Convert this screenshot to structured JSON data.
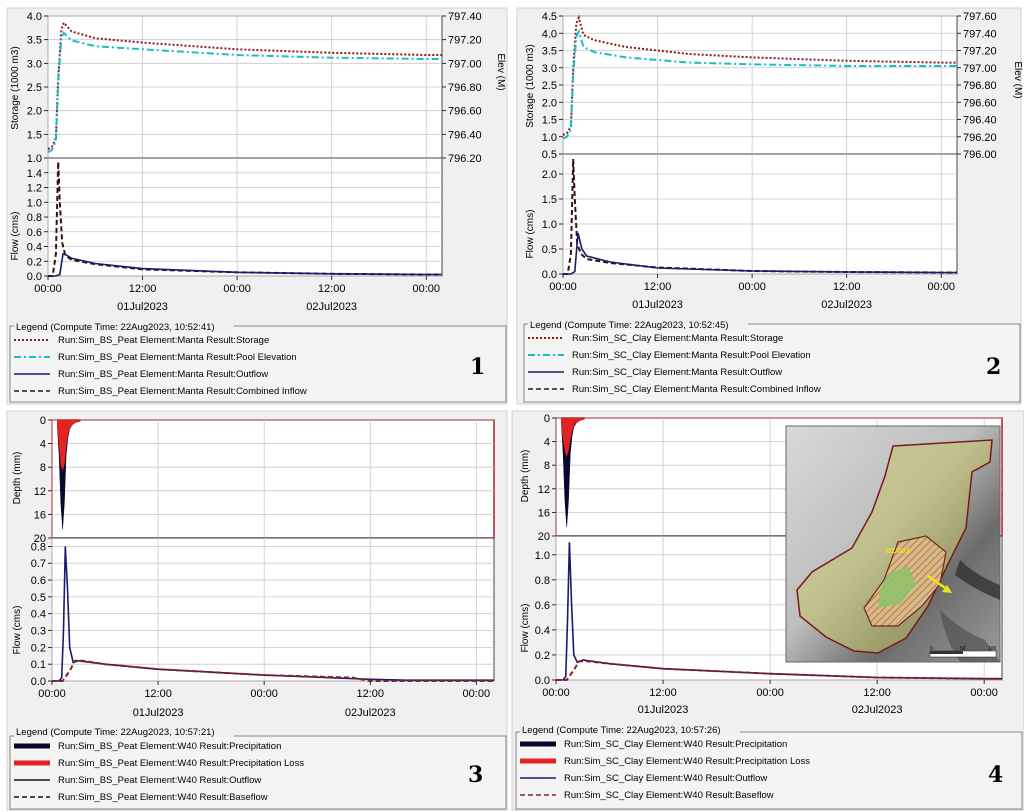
{
  "colors": {
    "storage": "#8b1a1a",
    "pool": "#17bec8",
    "outflow": "#1a1a6e",
    "inflow": "#3a1010",
    "precip": "#08082e",
    "ploss": "#e32222",
    "grid": "#c8c8c8",
    "frame": "#444444",
    "red_frame": "#b01a2a"
  },
  "x_ticks": [
    "00:00",
    "12:00",
    "00:00",
    "12:00",
    "00:00"
  ],
  "x_dates": [
    "01Jul2023",
    "02Jul2023"
  ],
  "panels": [
    {
      "number": "1",
      "storage_label": "Storage (1000 m3)",
      "elev_label": "Elev (M)",
      "flow_label": "Flow (cms)",
      "storage_ticks": [
        "4.0",
        "3.5",
        "3.0",
        "2.5",
        "2.0",
        "1.5",
        "1.0"
      ],
      "elev_ticks": [
        "797.40",
        "797.20",
        "797.00",
        "796.80",
        "796.60",
        "796.40",
        "796.20"
      ],
      "flow_ticks": [
        "1.4",
        "1.2",
        "1.0",
        "0.8",
        "0.6",
        "0.4",
        "0.2",
        "0.0"
      ],
      "legend_title": "Legend (Compute Time: 22Aug2023, 10:52:41)",
      "legend": [
        "Run:Sim_BS_Peat Element:Manta Result:Storage",
        "Run:Sim_BS_Peat Element:Manta Result:Pool Elevation",
        "Run:Sim_BS_Peat Element:Manta Result:Outflow",
        "Run:Sim_BS_Peat Element:Manta Result:Combined Inflow"
      ]
    },
    {
      "number": "2",
      "storage_label": "Storage (1000 m3)",
      "elev_label": "Elev (M)",
      "flow_label": "Flow (cms)",
      "storage_ticks": [
        "4.5",
        "4.0",
        "3.5",
        "3.0",
        "2.5",
        "2.0",
        "1.5",
        "1.0",
        "0.5"
      ],
      "elev_ticks": [
        "797.60",
        "797.40",
        "797.20",
        "797.00",
        "796.80",
        "796.60",
        "796.40",
        "796.20",
        "796.00"
      ],
      "flow_ticks": [
        "2.0",
        "1.5",
        "1.0",
        "0.5",
        "0.0"
      ],
      "legend_title": "Legend (Compute Time: 22Aug2023, 10:52:45)",
      "legend": [
        "Run:Sim_SC_Clay Element:Manta Result:Storage",
        "Run:Sim_SC_Clay Element:Manta Result:Pool Elevation",
        "Run:Sim_SC_Clay Element:Manta Result:Outflow",
        "Run:Sim_SC_Clay Element:Manta Result:Combined Inflow"
      ]
    },
    {
      "number": "3",
      "depth_label": "Depth (mm)",
      "flow_label": "Flow (cms)",
      "depth_ticks": [
        "0",
        "4",
        "8",
        "12",
        "16",
        "20"
      ],
      "flow_ticks": [
        "0.8",
        "0.7",
        "0.6",
        "0.5",
        "0.4",
        "0.3",
        "0.2",
        "0.1",
        "0.0"
      ],
      "legend_title": "Legend (Compute Time: 22Aug2023, 10:57:21)",
      "legend": [
        "Run:Sim_BS_Peat Element:W40 Result:Precipitation",
        "Run:Sim_BS_Peat Element:W40 Result:Precipitation Loss",
        "Run:Sim_BS_Peat Element:W40 Result:Outflow",
        "Run:Sim_BS_Peat Element:W40 Result:Baseflow"
      ]
    },
    {
      "number": "4",
      "depth_label": "Depth (mm)",
      "flow_label": "Flow (cms)",
      "depth_ticks": [
        "0",
        "4",
        "8",
        "12",
        "16",
        "20"
      ],
      "flow_ticks": [
        "1.0",
        "0.8",
        "0.6",
        "0.4",
        "0.2",
        "0.0"
      ],
      "map_label": "BZ-003",
      "scale_labels": [
        "0",
        "50",
        "100"
      ],
      "legend_title": "Legend (Compute Time: 22Aug2023, 10:57:26)",
      "legend": [
        "Run:Sim_SC_Clay Element:W40 Result:Precipitation",
        "Run:Sim_SC_Clay Element:W40 Result:Precipitation Loss",
        "Run:Sim_SC_Clay Element:W40 Result:Outflow",
        "Run:Sim_SC_Clay Element:W40 Result:Baseflow"
      ]
    }
  ],
  "chart_data": [
    {
      "type": "line",
      "x_unit": "hours since 01Jul2023 00:00",
      "xlim": [
        0,
        50
      ],
      "top": {
        "ylabel": "Storage (1000 m3)",
        "ylim": [
          0.8,
          4.0
        ],
        "y2label": "Elev (M)",
        "y2lim": [
          796.0,
          797.4
        ],
        "series": [
          {
            "name": "Run:Sim_BS_Peat Element:Manta Result:Storage",
            "x": [
              0,
              0.5,
              1.0,
              1.3,
              1.7,
              2.0,
              3,
              6,
              12,
              24,
              36,
              48,
              50
            ],
            "y": [
              1.0,
              1.05,
              1.25,
              2.6,
              3.7,
              3.85,
              3.65,
              3.5,
              3.4,
              3.25,
              3.17,
              3.12,
              3.12
            ]
          },
          {
            "name": "Run:Sim_BS_Peat Element:Manta Result:Pool Elevation",
            "x": [
              0,
              0.5,
              1.0,
              1.3,
              1.7,
              2.0,
              3,
              6,
              12,
              24,
              36,
              48,
              50
            ],
            "y": [
              0.93,
              0.98,
              1.18,
              2.5,
              3.5,
              3.62,
              3.45,
              3.32,
              3.25,
              3.12,
              3.06,
              3.03,
              3.03
            ]
          }
        ]
      },
      "bottom": {
        "ylabel": "Flow (cms)",
        "ylim": [
          0,
          1.6
        ],
        "series": [
          {
            "name": "Run:Sim_BS_Peat Element:Manta Result:Combined Inflow",
            "x": [
              0,
              0.6,
              1.0,
              1.3,
              1.5,
              1.8,
              2.2,
              3,
              6,
              12,
              24,
              36,
              48,
              50
            ],
            "y": [
              0,
              0.0,
              0.3,
              1.55,
              1.0,
              0.45,
              0.28,
              0.22,
              0.16,
              0.09,
              0.05,
              0.03,
              0.02,
              0.02
            ]
          },
          {
            "name": "Run:Sim_BS_Peat Element:Manta Result:Outflow",
            "x": [
              0,
              1.0,
              1.5,
              1.9,
              2.4,
              3,
              6,
              12,
              24,
              36,
              48,
              50
            ],
            "y": [
              0,
              0,
              0.02,
              0.3,
              0.28,
              0.24,
              0.17,
              0.1,
              0.05,
              0.03,
              0.02,
              0.02
            ]
          }
        ]
      }
    },
    {
      "type": "line",
      "x_unit": "hours since 01Jul2023 00:00",
      "xlim": [
        0,
        50
      ],
      "top": {
        "ylabel": "Storage (1000 m3)",
        "ylim": [
          0.5,
          4.5
        ],
        "y2label": "Elev (M)",
        "y2lim": [
          796.0,
          797.6
        ],
        "series": [
          {
            "name": "Run:Sim_SC_Clay Element:Manta Result:Storage",
            "x": [
              0,
              0.5,
              1.0,
              1.3,
              1.7,
              2.0,
              2.6,
              4,
              8,
              16,
              24,
              36,
              48,
              50
            ],
            "y": [
              1.05,
              1.1,
              1.3,
              3.0,
              4.3,
              4.45,
              3.95,
              3.8,
              3.6,
              3.4,
              3.3,
              3.2,
              3.15,
              3.15
            ]
          },
          {
            "name": "Run:Sim_SC_Clay Element:Manta Result:Pool Elevation",
            "x": [
              0,
              0.5,
              1.0,
              1.3,
              1.7,
              2.0,
              2.6,
              4,
              8,
              16,
              24,
              36,
              48,
              50
            ],
            "y": [
              0.95,
              1.0,
              1.2,
              2.8,
              3.9,
              4.05,
              3.6,
              3.45,
              3.3,
              3.15,
              3.1,
              3.05,
              3.05,
              3.05
            ]
          }
        ]
      },
      "bottom": {
        "ylabel": "Flow (cms)",
        "ylim": [
          0,
          2.4
        ],
        "series": [
          {
            "name": "Run:Sim_SC_Clay Element:Manta Result:Combined Inflow",
            "x": [
              0,
              0.6,
              1.0,
              1.3,
              1.5,
              1.8,
              2.3,
              3,
              6,
              12,
              24,
              36,
              48,
              50
            ],
            "y": [
              0,
              0,
              0.4,
              2.3,
              1.5,
              0.6,
              0.4,
              0.3,
              0.22,
              0.13,
              0.06,
              0.04,
              0.03,
              0.03
            ]
          },
          {
            "name": "Run:Sim_SC_Clay Element:Manta Result:Outflow",
            "x": [
              0,
              1.0,
              1.5,
              1.9,
              2.4,
              3,
              6,
              12,
              24,
              36,
              48,
              50
            ],
            "y": [
              0,
              0,
              0.05,
              0.82,
              0.5,
              0.36,
              0.24,
              0.12,
              0.06,
              0.04,
              0.03,
              0.03
            ]
          }
        ]
      }
    },
    {
      "type": "line",
      "x_unit": "hours since 01Jul2023 00:00",
      "xlim": [
        0,
        50
      ],
      "top": {
        "ylabel": "Depth (mm)",
        "ylim": [
          0,
          20
        ],
        "inverted": true,
        "series": [
          {
            "name": "Run:Sim_BS_Peat Element:W40 Result:Precipitation",
            "x": [
              0.6,
              0.8,
              1.0,
              1.2,
              1.4,
              1.6,
              1.8,
              2.0,
              2.3,
              2.7,
              3.2
            ],
            "y": [
              1.0,
              6.0,
              14.0,
              18.5,
              14.0,
              6.0,
              3.0,
              1.5,
              0.8,
              0.4,
              0.2
            ]
          },
          {
            "name": "Run:Sim_BS_Peat Element:W40 Result:Precipitation Loss",
            "x": [
              0.6,
              0.8,
              1.0,
              1.2,
              1.4,
              1.6,
              1.8,
              2.0,
              2.3,
              2.7,
              3.2
            ],
            "y": [
              1.0,
              4.0,
              7.5,
              8.5,
              7.5,
              4.5,
              2.5,
              1.3,
              0.8,
              0.4,
              0.2
            ]
          }
        ]
      },
      "bottom": {
        "ylabel": "Flow (cms)",
        "ylim": [
          0,
          0.85
        ],
        "series": [
          {
            "name": "Run:Sim_BS_Peat Element:W40 Result:Outflow",
            "x": [
              0,
              0.8,
              1.1,
              1.3,
              1.5,
              1.75,
              2.0,
              2.4,
              3,
              6,
              12,
              24,
              36,
              40,
              50
            ],
            "y": [
              0,
              0,
              0.02,
              0.3,
              0.8,
              0.55,
              0.2,
              0.11,
              0.12,
              0.1,
              0.07,
              0.035,
              0.01,
              0.005,
              0.005
            ]
          },
          {
            "name": "Run:Sim_BS_Peat Element:W40 Result:Baseflow",
            "x": [
              0,
              1.2,
              2.0,
              2.6,
              3.5,
              6,
              12,
              24,
              34,
              36,
              50
            ],
            "y": [
              0,
              0,
              0.06,
              0.12,
              0.12,
              0.1,
              0.07,
              0.035,
              0.02,
              0.0,
              0.0
            ]
          }
        ]
      }
    },
    {
      "type": "line",
      "x_unit": "hours since 01Jul2023 00:00",
      "xlim": [
        0,
        50
      ],
      "top": {
        "ylabel": "Depth (mm)",
        "ylim": [
          0,
          20
        ],
        "inverted": true,
        "series": [
          {
            "name": "Run:Sim_SC_Clay Element:W40 Result:Precipitation",
            "x": [
              0.6,
              0.8,
              1.0,
              1.2,
              1.4,
              1.6,
              1.8,
              2.0,
              2.3,
              2.7,
              3.2
            ],
            "y": [
              1.0,
              6.0,
              14.0,
              18.5,
              14.0,
              6.0,
              3.0,
              1.5,
              0.8,
              0.4,
              0.2
            ]
          },
          {
            "name": "Run:Sim_SC_Clay Element:W40 Result:Precipitation Loss",
            "x": [
              0.6,
              0.8,
              1.0,
              1.2,
              1.4,
              1.6,
              1.8,
              2.0,
              2.3,
              2.7,
              3.2
            ],
            "y": [
              1.0,
              3.5,
              5.5,
              6.5,
              5.5,
              3.5,
              2.2,
              1.2,
              0.7,
              0.4,
              0.2
            ]
          }
        ]
      },
      "bottom": {
        "ylabel": "Flow (cms)",
        "ylim": [
          0,
          1.15
        ],
        "series": [
          {
            "name": "Run:Sim_SC_Clay Element:W40 Result:Outflow",
            "x": [
              0,
              0.8,
              1.1,
              1.3,
              1.5,
              1.75,
              2.0,
              2.4,
              3,
              6,
              12,
              24,
              36,
              48,
              50
            ],
            "y": [
              0,
              0,
              0.03,
              0.5,
              1.1,
              0.6,
              0.2,
              0.14,
              0.16,
              0.13,
              0.09,
              0.05,
              0.02,
              0.01,
              0.01
            ]
          },
          {
            "name": "Run:Sim_SC_Clay Element:W40 Result:Baseflow",
            "x": [
              0,
              1.2,
              2.0,
              2.6,
              3.5,
              6,
              12,
              24,
              36,
              48,
              50
            ],
            "y": [
              0,
              0,
              0.08,
              0.15,
              0.15,
              0.13,
              0.09,
              0.05,
              0.02,
              0.01,
              0.01
            ]
          }
        ]
      }
    }
  ]
}
